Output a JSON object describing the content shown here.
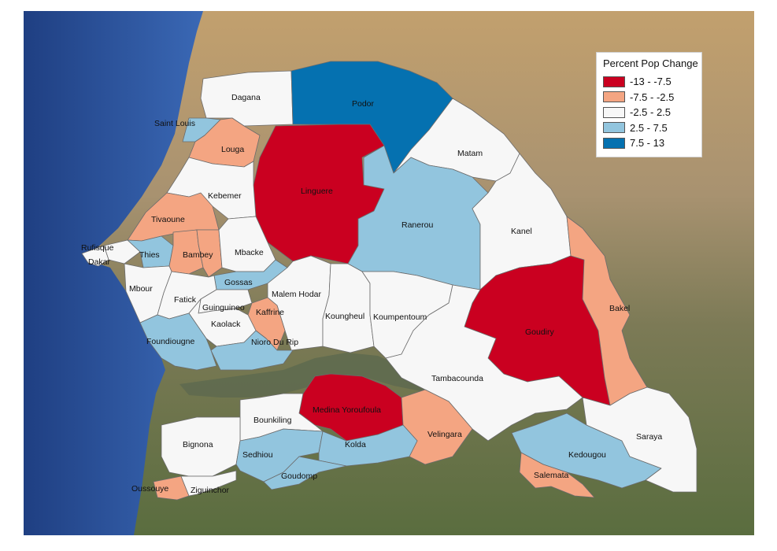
{
  "legend": {
    "title": "Percent Pop Change",
    "classes": [
      {
        "key": "c1",
        "label": "-13 - -7.5",
        "color": "#ca0020"
      },
      {
        "key": "c2",
        "label": "-7.5 - -2.5",
        "color": "#f4a582"
      },
      {
        "key": "c3",
        "label": "-2.5 - 2.5",
        "color": "#f7f7f7"
      },
      {
        "key": "c4",
        "label": "2.5 - 7.5",
        "color": "#92c5de"
      },
      {
        "key": "c5",
        "label": "7.5 - 13",
        "color": "#0571b0"
      }
    ]
  },
  "basemap_colors": {
    "ocean": "#2f5aa8",
    "ocean_deep": "#1f3f82",
    "desert": "#b89a6a",
    "savanna": "#7f7d58",
    "forest": "#5c7040",
    "gambia_river": "#5f6a4f"
  },
  "departments": [
    {
      "name": "Dagana",
      "class": "c3"
    },
    {
      "name": "Podor",
      "class": "c5"
    },
    {
      "name": "Saint Louis",
      "class": "c4"
    },
    {
      "name": "Louga",
      "class": "c2"
    },
    {
      "name": "Linguere",
      "class": "c1"
    },
    {
      "name": "Matam",
      "class": "c3"
    },
    {
      "name": "Kebemer",
      "class": "c3"
    },
    {
      "name": "Ranerou",
      "class": "c4"
    },
    {
      "name": "Kanel",
      "class": "c3"
    },
    {
      "name": "Tivaoune",
      "class": "c2"
    },
    {
      "name": "Rufisque",
      "class": "c3"
    },
    {
      "name": "Dakar",
      "class": "c3"
    },
    {
      "name": "Thies",
      "class": "c4"
    },
    {
      "name": "Bambey",
      "class": "c2"
    },
    {
      "name": "Mbacke",
      "class": "c3"
    },
    {
      "name": "Gossas",
      "class": "c4"
    },
    {
      "name": "Mbour",
      "class": "c3"
    },
    {
      "name": "Fatick",
      "class": "c3"
    },
    {
      "name": "Guinguineo",
      "class": "c3"
    },
    {
      "name": "Malem Hodar",
      "class": "c3"
    },
    {
      "name": "Kaffrine",
      "class": "c2"
    },
    {
      "name": "Kaolack",
      "class": "c3"
    },
    {
      "name": "Koungheul",
      "class": "c3"
    },
    {
      "name": "Koumpentoum",
      "class": "c3"
    },
    {
      "name": "Goudiry",
      "class": "c1"
    },
    {
      "name": "Bakel",
      "class": "c2"
    },
    {
      "name": "Foundiougne",
      "class": "c4"
    },
    {
      "name": "Nioro Du Rip",
      "class": "c4"
    },
    {
      "name": "Tambacounda",
      "class": "c3"
    },
    {
      "name": "Medina Yoroufoula",
      "class": "c1"
    },
    {
      "name": "Bounkiling",
      "class": "c3"
    },
    {
      "name": "Velingara",
      "class": "c2"
    },
    {
      "name": "Bignona",
      "class": "c3"
    },
    {
      "name": "Sedhiou",
      "class": "c4"
    },
    {
      "name": "Kolda",
      "class": "c4"
    },
    {
      "name": "Kedougou",
      "class": "c4"
    },
    {
      "name": "Saraya",
      "class": "c3"
    },
    {
      "name": "Goudomp",
      "class": "c4"
    },
    {
      "name": "Salemata",
      "class": "c2"
    },
    {
      "name": "Oussouye",
      "class": "c2"
    },
    {
      "name": "Ziguinchor",
      "class": "c3"
    }
  ]
}
